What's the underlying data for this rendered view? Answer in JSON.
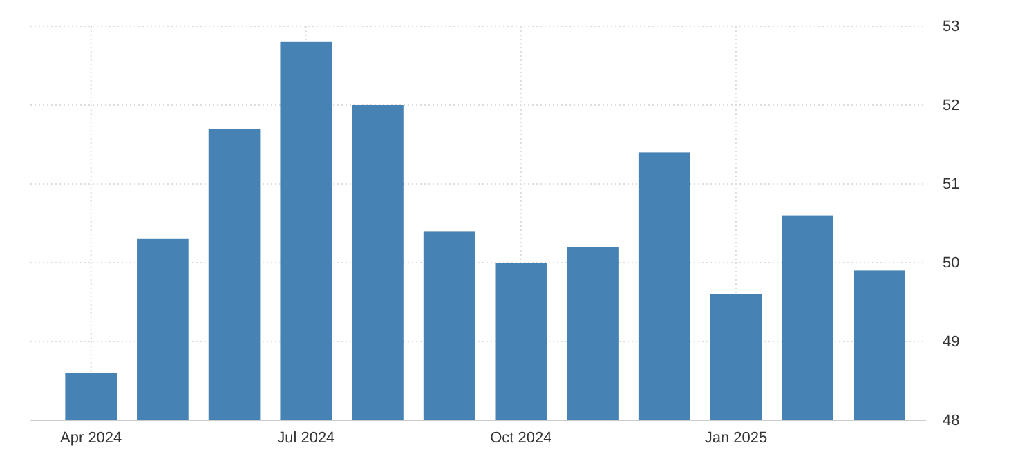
{
  "chart_data": {
    "type": "bar",
    "categories": [
      "Apr 2024",
      null,
      null,
      "Jul 2024",
      null,
      null,
      "Oct 2024",
      null,
      null,
      "Jan 2025",
      null,
      null
    ],
    "values": [
      48.6,
      50.3,
      51.7,
      52.8,
      52.0,
      50.4,
      50.0,
      50.2,
      51.4,
      49.6,
      50.6,
      49.9
    ],
    "color": "#4682b4",
    "ylim": [
      48,
      53
    ],
    "yticks": [
      48,
      49,
      50,
      51,
      52,
      53
    ],
    "grid": true
  }
}
